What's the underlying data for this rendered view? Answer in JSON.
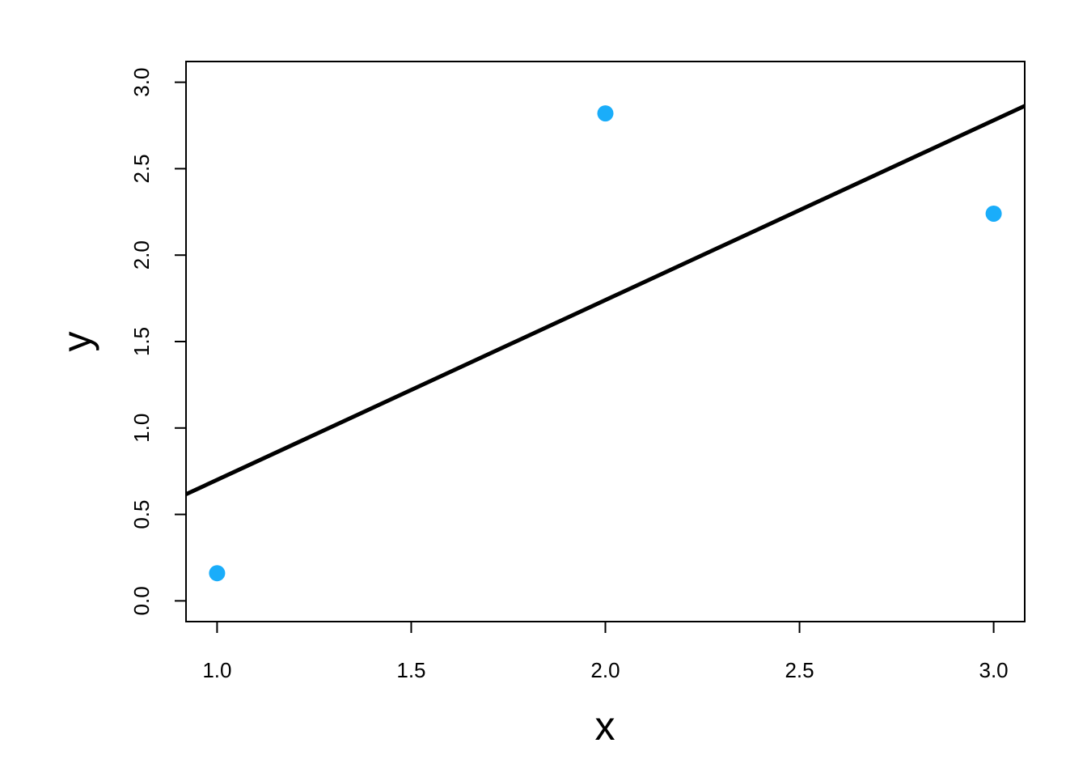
{
  "chart_data": {
    "type": "scatter",
    "title": "",
    "xlabel": "x",
    "ylabel": "y",
    "xlim": [
      0.92,
      3.08
    ],
    "ylim": [
      0,
      3
    ],
    "x_ticks": [
      "1.0",
      "1.5",
      "2.0",
      "2.5",
      "3.0"
    ],
    "y_ticks": [
      "0.0",
      "0.5",
      "1.0",
      "1.5",
      "2.0",
      "2.5",
      "3.0"
    ],
    "points": [
      {
        "x": 1,
        "y": 0.16
      },
      {
        "x": 2,
        "y": 2.82
      },
      {
        "x": 3,
        "y": 2.24
      }
    ],
    "fit_line": {
      "intercept": -0.34,
      "slope": 1.04
    },
    "grid": false,
    "colors": {
      "points": "#1AADFA",
      "line": "#000000"
    }
  }
}
